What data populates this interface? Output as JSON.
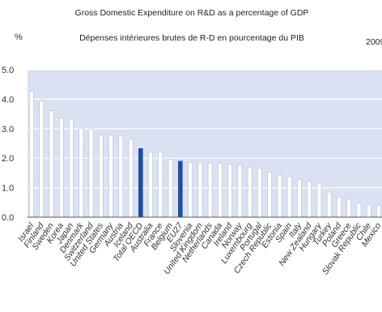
{
  "chart_data": {
    "type": "bar",
    "title": "Gross Domestic Expenditure on R&D as a percentage of GDP",
    "subtitle": "Dépenses intérieures brutes de R-D en pourcentage du PIB",
    "year_label": "2009",
    "ylabel": "%",
    "ylim": [
      0,
      5
    ],
    "yticks": [
      "0.0",
      "1.0",
      "2.0",
      "3.0",
      "4.0",
      "5.0"
    ],
    "grid": true,
    "colors": {
      "plot_background": "#d9e1f2",
      "bar": "#ffffff",
      "bar_outline": "#b8bfcc",
      "highlight": "#1d4fa0",
      "gridline": "#ffffff",
      "axis": "#555555"
    },
    "highlighted": [
      "Total OECD",
      "EU27"
    ],
    "categories": [
      "Israel",
      "Finland",
      "Sweden",
      "Korea",
      "Japan",
      "Denmark",
      "Switzerland",
      "United States",
      "Germany",
      "Austria",
      "Iceland",
      "Total OECD",
      "Australia",
      "France",
      "Belgium",
      "EU27",
      "Slovenia",
      "United Kingdom",
      "Netherlands",
      "Canada",
      "Ireland",
      "Norway",
      "Luxembourg",
      "Portugal",
      "Czech Republic",
      "Estonia",
      "Spain",
      "Italy",
      "New Zealand",
      "Hungary",
      "Turkey",
      "Poland",
      "Greece",
      "Slovak Republic",
      "Chile",
      "Mexico"
    ],
    "values": [
      4.27,
      3.93,
      3.61,
      3.36,
      3.33,
      3.02,
      2.99,
      2.79,
      2.78,
      2.75,
      2.64,
      2.33,
      2.21,
      2.21,
      1.96,
      1.9,
      1.86,
      1.85,
      1.82,
      1.82,
      1.79,
      1.76,
      1.68,
      1.66,
      1.53,
      1.42,
      1.38,
      1.27,
      1.21,
      1.15,
      0.85,
      0.68,
      0.6,
      0.48,
      0.42,
      0.4
    ]
  }
}
